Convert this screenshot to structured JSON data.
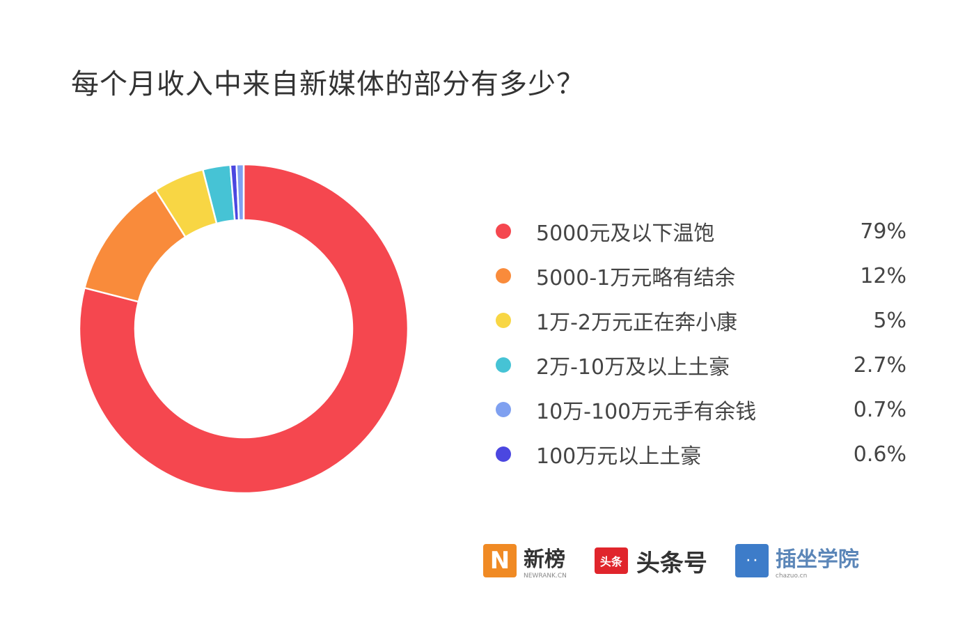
{
  "chart_data": {
    "type": "pie",
    "variant": "donut",
    "title": "每个月收入中来自新媒体的部分有多少？",
    "legend_position": "right",
    "categories": [
      "5000元及以下温饱",
      "5000-1万元略有结余",
      "1万-2万元正在奔小康",
      "2万-10万及以上土豪",
      "10万-100万元手有余钱",
      "100万元以上土豪"
    ],
    "values": [
      79,
      12,
      5,
      2.7,
      0.7,
      0.6
    ],
    "value_labels": [
      "79%",
      "12%",
      "5%",
      "2.7%",
      "0.7%",
      "0.6%"
    ],
    "colors": [
      "#f5474f",
      "#f98b3b",
      "#f8d644",
      "#46c3d5",
      "#7fa0f0",
      "#4b47e0"
    ]
  },
  "logos": {
    "newrank": {
      "name": "新榜",
      "sub": "NEWRANK.CN",
      "color": "#f08a24"
    },
    "toutiao": {
      "name": "头条号",
      "icon_text": "头条",
      "color": "#e0252c"
    },
    "chazuo": {
      "name": "插坐学院",
      "sub": "chazuo.cn",
      "color": "#3d7cc9"
    }
  }
}
